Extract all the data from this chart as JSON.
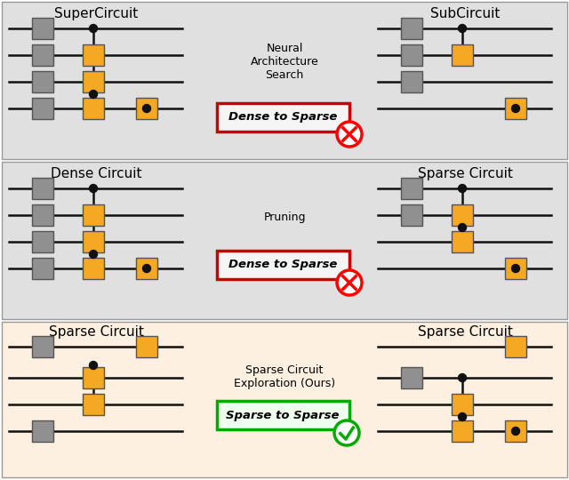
{
  "panel_bg_top": "#e0e0e0",
  "panel_bg_mid": "#e0e0e0",
  "panel_bg_bot": "#fdf0e0",
  "gate_orange": "#f5a823",
  "gate_gray": "#909090",
  "line_color": "#111111",
  "dot_color": "#111111",
  "title_top_left": "SuperCircuit",
  "title_top_right": "SubCircuit",
  "title_mid_left": "Dense Circuit",
  "title_mid_right": "Sparse Circuit",
  "title_bot_left": "Sparse Circuit",
  "title_bot_right": "Sparse Circuit",
  "label_top": "Neural\nArchitecture\nSearch",
  "label_mid": "Pruning",
  "label_bot": "Sparse Circuit\nExploration (Ours)",
  "box_top": "Dense to Sparse",
  "box_mid": "Dense to Sparse",
  "box_bot": "Sparse to Sparse",
  "box_color_top": "#cc0000",
  "box_color_bot": "#00aa00",
  "fig_width": 6.4,
  "fig_height": 5.4
}
